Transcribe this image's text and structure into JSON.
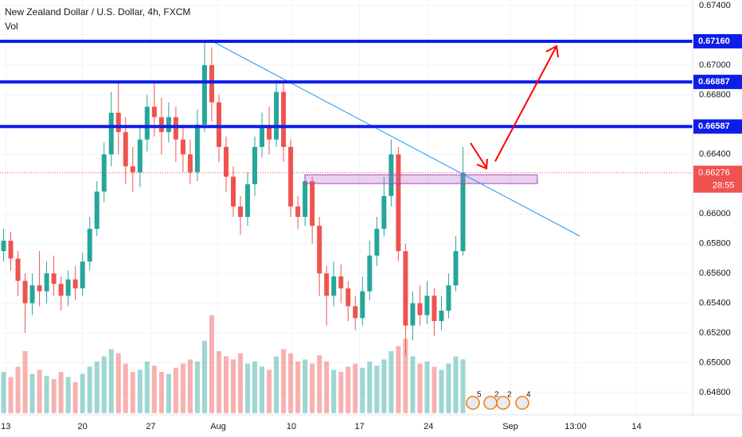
{
  "chart_data": {
    "type": "candlestick",
    "title": "New Zealand Dollar / U.S. Dollar, 4h, FXCM",
    "volume_label": "Vol",
    "up_color": "#26a69a",
    "down_color": "#ef5350",
    "candles": [
      [
        0.6575,
        0.659,
        0.6568,
        0.6582
      ],
      [
        0.6582,
        0.6588,
        0.6562,
        0.657
      ],
      [
        0.657,
        0.6575,
        0.6545,
        0.6555
      ],
      [
        0.6555,
        0.656,
        0.652,
        0.654
      ],
      [
        0.654,
        0.656,
        0.6532,
        0.6552
      ],
      [
        0.6552,
        0.6575,
        0.6538,
        0.6548
      ],
      [
        0.6548,
        0.6568,
        0.654,
        0.656
      ],
      [
        0.656,
        0.6572,
        0.6545,
        0.6553
      ],
      [
        0.6553,
        0.6558,
        0.6535,
        0.6545
      ],
      [
        0.6545,
        0.6562,
        0.6538,
        0.6556
      ],
      [
        0.6556,
        0.6565,
        0.6542,
        0.655
      ],
      [
        0.655,
        0.6574,
        0.6545,
        0.6568
      ],
      [
        0.6568,
        0.6598,
        0.6562,
        0.659
      ],
      [
        0.659,
        0.6622,
        0.6585,
        0.6615
      ],
      [
        0.6615,
        0.6648,
        0.6608,
        0.664
      ],
      [
        0.664,
        0.6682,
        0.6632,
        0.6668
      ],
      [
        0.6668,
        0.6688,
        0.664,
        0.6655
      ],
      [
        0.6655,
        0.6665,
        0.662,
        0.6632
      ],
      [
        0.6632,
        0.6645,
        0.6615,
        0.6628
      ],
      [
        0.6628,
        0.666,
        0.6618,
        0.665
      ],
      [
        0.665,
        0.668,
        0.6642,
        0.6672
      ],
      [
        0.6672,
        0.6688,
        0.6652,
        0.6665
      ],
      [
        0.6665,
        0.6678,
        0.664,
        0.6655
      ],
      [
        0.6655,
        0.6675,
        0.6648,
        0.6665
      ],
      [
        0.6665,
        0.6672,
        0.6635,
        0.665
      ],
      [
        0.665,
        0.666,
        0.6628,
        0.664
      ],
      [
        0.664,
        0.665,
        0.662,
        0.6628
      ],
      [
        0.6628,
        0.667,
        0.6622,
        0.666
      ],
      [
        0.666,
        0.6715,
        0.6655,
        0.67
      ],
      [
        0.67,
        0.6712,
        0.6662,
        0.6675
      ],
      [
        0.6675,
        0.668,
        0.6635,
        0.6645
      ],
      [
        0.6645,
        0.6652,
        0.6615,
        0.6625
      ],
      [
        0.6625,
        0.6632,
        0.6598,
        0.6605
      ],
      [
        0.6605,
        0.6612,
        0.6586,
        0.6598
      ],
      [
        0.6598,
        0.6628,
        0.6592,
        0.662
      ],
      [
        0.662,
        0.6652,
        0.6612,
        0.6645
      ],
      [
        0.6645,
        0.6668,
        0.6638,
        0.6658
      ],
      [
        0.6658,
        0.6672,
        0.664,
        0.665
      ],
      [
        0.665,
        0.669,
        0.6645,
        0.6682
      ],
      [
        0.6682,
        0.6688,
        0.6635,
        0.6645
      ],
      [
        0.6645,
        0.665,
        0.6598,
        0.6605
      ],
      [
        0.6605,
        0.6612,
        0.659,
        0.6598
      ],
      [
        0.6598,
        0.6626,
        0.6592,
        0.6622
      ],
      [
        0.6622,
        0.6625,
        0.658,
        0.6592
      ],
      [
        0.6592,
        0.6598,
        0.6545,
        0.656
      ],
      [
        0.656,
        0.6565,
        0.6525,
        0.6545
      ],
      [
        0.6545,
        0.6568,
        0.6538,
        0.6558
      ],
      [
        0.6558,
        0.6566,
        0.654,
        0.655
      ],
      [
        0.655,
        0.6555,
        0.6528,
        0.6538
      ],
      [
        0.6538,
        0.6545,
        0.6522,
        0.653
      ],
      [
        0.653,
        0.6558,
        0.6525,
        0.6548
      ],
      [
        0.6548,
        0.6582,
        0.6542,
        0.6572
      ],
      [
        0.6572,
        0.6598,
        0.6565,
        0.659
      ],
      [
        0.659,
        0.6625,
        0.6585,
        0.6612
      ],
      [
        0.6612,
        0.665,
        0.6605,
        0.664
      ],
      [
        0.664,
        0.6645,
        0.6568,
        0.6575
      ],
      [
        0.6575,
        0.658,
        0.6505,
        0.6525
      ],
      [
        0.6525,
        0.6548,
        0.6515,
        0.654
      ],
      [
        0.654,
        0.6552,
        0.6525,
        0.6532
      ],
      [
        0.6532,
        0.6555,
        0.6526,
        0.6545
      ],
      [
        0.6545,
        0.655,
        0.6518,
        0.6528
      ],
      [
        0.6528,
        0.6545,
        0.6522,
        0.6535
      ],
      [
        0.6535,
        0.656,
        0.653,
        0.6552
      ],
      [
        0.6552,
        0.6585,
        0.6548,
        0.6575
      ],
      [
        0.6575,
        0.6645,
        0.6572,
        0.66276
      ]
    ],
    "volume": [
      40,
      35,
      45,
      60,
      38,
      42,
      36,
      33,
      40,
      35,
      30,
      38,
      45,
      50,
      55,
      62,
      58,
      48,
      40,
      42,
      50,
      46,
      40,
      38,
      44,
      48,
      52,
      50,
      70,
      95,
      60,
      55,
      52,
      58,
      48,
      50,
      45,
      42,
      55,
      62,
      58,
      50,
      52,
      48,
      56,
      50,
      42,
      40,
      45,
      48,
      44,
      50,
      46,
      52,
      60,
      65,
      72,
      55,
      48,
      50,
      45,
      42,
      48,
      55,
      52
    ],
    "vlim": [
      0,
      100
    ],
    "xlim": [
      -0.5,
      96
    ],
    "xticks": [
      {
        "value": 0.3,
        "label": "13"
      },
      {
        "value": 11,
        "label": "20"
      },
      {
        "value": 20.5,
        "label": "27"
      },
      {
        "value": 29.9,
        "label": "Aug"
      },
      {
        "value": 40.1,
        "label": "10"
      },
      {
        "value": 49.6,
        "label": "17"
      },
      {
        "value": 59.2,
        "label": "24"
      },
      {
        "value": 70.6,
        "label": "Sep"
      },
      {
        "value": 79.7,
        "label": "13:00"
      },
      {
        "value": 88.2,
        "label": "14"
      }
    ],
    "ylim": [
      0.648,
      0.674
    ],
    "yticks": [
      {
        "value": 0.674,
        "label": "0.67400"
      },
      {
        "value": 0.67,
        "label": "0.67000"
      },
      {
        "value": 0.668,
        "label": "0.66800"
      },
      {
        "value": 0.664,
        "label": "0.66400"
      },
      {
        "value": 0.66,
        "label": "0.66000"
      },
      {
        "value": 0.658,
        "label": "0.65800"
      },
      {
        "value": 0.656,
        "label": "0.65600"
      },
      {
        "value": 0.654,
        "label": "0.65400"
      },
      {
        "value": 0.652,
        "label": "0.65200"
      },
      {
        "value": 0.65,
        "label": "0.65000"
      },
      {
        "value": 0.648,
        "label": "0.64800"
      }
    ],
    "grid": true,
    "levels": [
      {
        "value": 0.6716,
        "label": "0.67160"
      },
      0.66887,
      0.66587
    ],
    "level_color": "#0d1ee8",
    "current_price": 0.66276,
    "countdown": "28:55",
    "event_badges": [
      "5",
      "2",
      "2",
      "4"
    ]
  }
}
